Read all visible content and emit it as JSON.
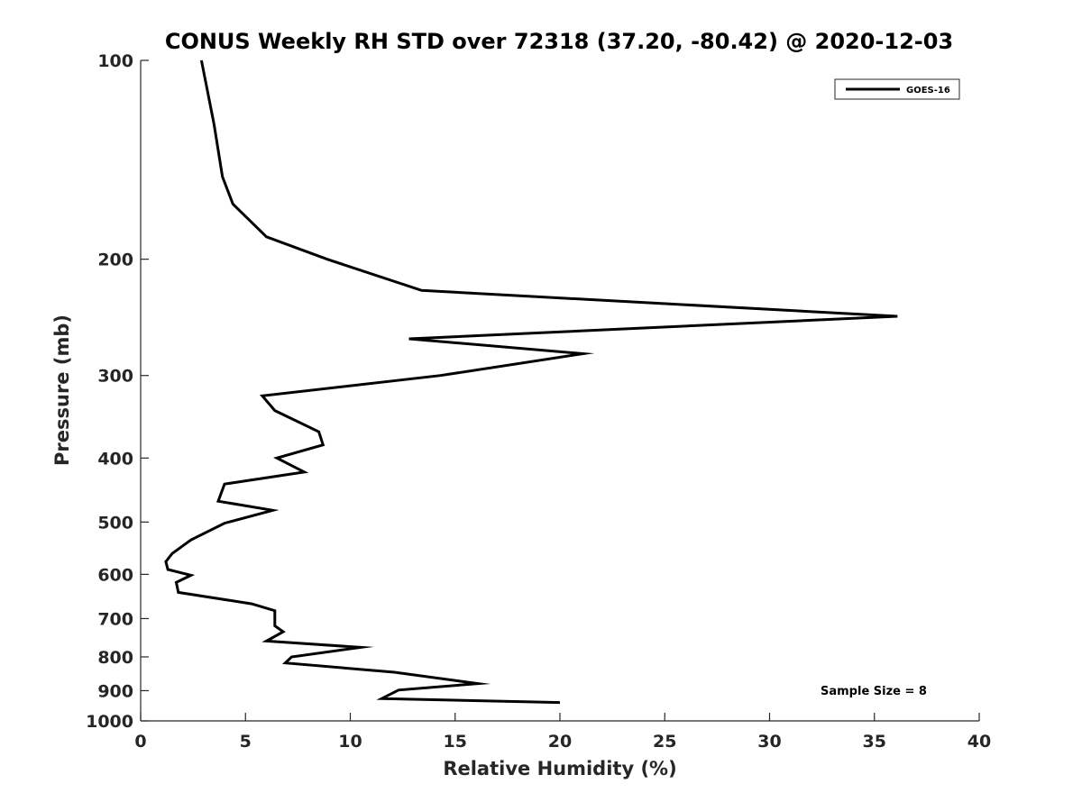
{
  "chart_data": {
    "type": "line",
    "title": "CONUS Weekly RH STD over 72318 (37.20, -80.42) @ 2020-12-03",
    "xlabel": "Relative Humidity (%)",
    "ylabel": "Pressure (mb)",
    "xlim": [
      0,
      40
    ],
    "ylim": [
      1000,
      100
    ],
    "yscale": "log",
    "y_reversed": true,
    "x_ticks": [
      0,
      5,
      10,
      15,
      20,
      25,
      30,
      35,
      40
    ],
    "x_tick_labels": [
      "0",
      "5",
      "10",
      "15",
      "20",
      "25",
      "30",
      "35",
      "40"
    ],
    "y_ticks": [
      100,
      200,
      300,
      400,
      500,
      600,
      700,
      800,
      900,
      1000
    ],
    "y_tick_labels": [
      "100",
      "200",
      "300",
      "400",
      "500",
      "600",
      "700",
      "800",
      "900",
      "1000"
    ],
    "grid": false,
    "legend_position": "top-right",
    "annotation": "Sample Size = 8",
    "series": [
      {
        "name": "GOES-16",
        "color": "#000000",
        "points": [
          [
            2.9,
            100
          ],
          [
            3.5,
            125
          ],
          [
            3.9,
            150
          ],
          [
            4.4,
            165
          ],
          [
            6.0,
            185
          ],
          [
            8.9,
            200
          ],
          [
            13.4,
            223
          ],
          [
            36.1,
            244
          ],
          [
            12.8,
            264
          ],
          [
            21.1,
            278
          ],
          [
            14.3,
            300
          ],
          [
            5.8,
            322
          ],
          [
            6.4,
            339
          ],
          [
            8.5,
            365
          ],
          [
            8.7,
            382
          ],
          [
            6.5,
            400
          ],
          [
            7.8,
            420
          ],
          [
            4.0,
            438
          ],
          [
            3.7,
            465
          ],
          [
            6.3,
            480
          ],
          [
            4.0,
            502
          ],
          [
            2.4,
            532
          ],
          [
            1.5,
            558
          ],
          [
            1.2,
            574
          ],
          [
            1.3,
            590
          ],
          [
            2.4,
            602
          ],
          [
            1.7,
            617
          ],
          [
            1.8,
            639
          ],
          [
            5.3,
            665
          ],
          [
            6.4,
            681
          ],
          [
            6.4,
            718
          ],
          [
            6.8,
            733
          ],
          [
            6.0,
            757
          ],
          [
            10.5,
            774
          ],
          [
            7.2,
            800
          ],
          [
            6.9,
            817
          ],
          [
            12.1,
            844
          ],
          [
            16.1,
            878
          ],
          [
            12.3,
            898
          ],
          [
            11.5,
            925
          ],
          [
            20.0,
            938
          ]
        ]
      }
    ]
  }
}
